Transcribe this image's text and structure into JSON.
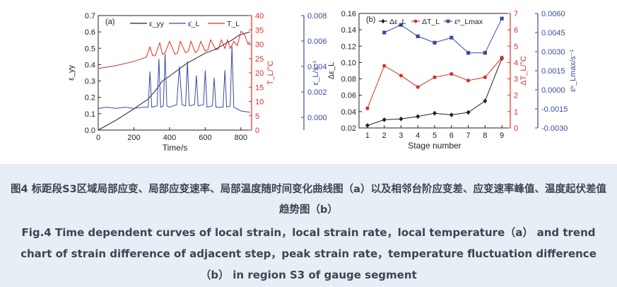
{
  "chart_data": [
    {
      "panel": "(a)",
      "type": "line",
      "xlabel": "Time/s",
      "xlim": [
        0,
        860
      ],
      "xticks": [
        0,
        200,
        400,
        600,
        800
      ],
      "axes": {
        "left": {
          "label": "ε_yy",
          "lim": [
            0.0,
            0.7
          ],
          "ticks": [
            "0.0",
            "0.1",
            "0.2",
            "0.3",
            "0.4",
            "0.5",
            "0.6",
            "0.7"
          ],
          "color": "#222222"
        },
        "right1": {
          "label": "T_L/°C",
          "lim": [
            0,
            40
          ],
          "ticks": [
            "0",
            "5",
            "10",
            "15",
            "20",
            "25",
            "30",
            "35",
            "40"
          ],
          "color": "#d8302a"
        },
        "right2": {
          "label": "ε̇_L/s⁻¹",
          "lim": [
            -0.001,
            0.008
          ],
          "ticks": [
            "0.000",
            "0.002",
            "0.004",
            "0.006",
            "0.008"
          ],
          "color": "#3a4aa0"
        }
      },
      "legend": [
        "ε_yy",
        "ε̇_L",
        "T_L"
      ],
      "series": [
        {
          "name": "ε_yy",
          "axis": "left",
          "color": "#222222",
          "x": [
            0,
            100,
            200,
            280,
            320,
            360,
            400,
            450,
            500,
            550,
            600,
            650,
            700,
            750,
            790,
            820,
            850
          ],
          "y": [
            0.0,
            0.06,
            0.13,
            0.19,
            0.24,
            0.3,
            0.33,
            0.37,
            0.41,
            0.44,
            0.47,
            0.49,
            0.52,
            0.55,
            0.58,
            0.59,
            0.6
          ]
        },
        {
          "name": "ε̇_L",
          "axis": "right2",
          "color": "#3a4aa0",
          "x": [
            0,
            50,
            100,
            150,
            200,
            250,
            280,
            290,
            300,
            330,
            340,
            350,
            365,
            375,
            385,
            400,
            420,
            440,
            455,
            470,
            490,
            500,
            510,
            540,
            550,
            560,
            590,
            600,
            610,
            640,
            650,
            660,
            700,
            710,
            720,
            740,
            750,
            760,
            800,
            850
          ],
          "y": [
            0.0007,
            0.0008,
            0.0007,
            0.0008,
            0.0007,
            0.0008,
            0.0008,
            0.0036,
            0.0008,
            0.0009,
            0.0046,
            0.0008,
            0.0009,
            0.005,
            0.0009,
            0.0008,
            0.0009,
            0.001,
            0.004,
            0.001,
            0.0009,
            0.0044,
            0.0009,
            0.001,
            0.0033,
            0.0009,
            0.001,
            0.0037,
            0.0008,
            0.0009,
            0.0031,
            0.0008,
            0.0008,
            0.0037,
            0.0008,
            0.0009,
            0.0056,
            0.0008,
            0.0005,
            0.0004
          ]
        },
        {
          "name": "T_L",
          "axis": "right1",
          "color": "#d8302a",
          "x": [
            0,
            100,
            200,
            270,
            290,
            305,
            320,
            345,
            360,
            375,
            400,
            430,
            445,
            460,
            490,
            505,
            520,
            545,
            560,
            575,
            600,
            615,
            630,
            660,
            675,
            690,
            710,
            725,
            740,
            760,
            780,
            800,
            820,
            840,
            850
          ],
          "y": [
            21.5,
            22.5,
            24.0,
            25.5,
            29.0,
            26.0,
            26.0,
            30.5,
            26.5,
            27.0,
            31.0,
            26.5,
            27.0,
            31.0,
            27.0,
            27.5,
            31.0,
            27.0,
            28.0,
            31.0,
            27.5,
            28.0,
            31.5,
            28.0,
            28.5,
            31.5,
            28.5,
            31.5,
            28.5,
            31.0,
            29.5,
            34.5,
            33.5,
            30.0,
            31.0
          ]
        }
      ]
    },
    {
      "panel": "(b)",
      "type": "line",
      "xlabel": "Stage number",
      "categories": [
        "1",
        "2",
        "3",
        "4",
        "5",
        "6",
        "7",
        "8",
        "9"
      ],
      "axes": {
        "left": {
          "label": "Δε_L",
          "lim": [
            0.02,
            0.16
          ],
          "ticks": [
            "0.02",
            "0.04",
            "0.06",
            "0.08",
            "0.10",
            "0.12",
            "0.14",
            "0.16"
          ],
          "color": "#222222"
        },
        "right1": {
          "label": "ΔT_L/°C",
          "lim": [
            0,
            7
          ],
          "ticks": [
            "0",
            "1",
            "2",
            "3",
            "4",
            "5",
            "6",
            "7"
          ],
          "color": "#d8302a"
        },
        "right2": {
          "label": "ε̇ⁿ_Lmax/s⁻¹",
          "lim": [
            -0.003,
            0.006
          ],
          "ticks": [
            "-0.0030",
            "-0.0015",
            "0.0000",
            "0.0015",
            "0.0030",
            "0.0045",
            "0.0060"
          ],
          "color": "#3a4aa0"
        }
      },
      "legend": [
        "Δε_L",
        "ΔT_L",
        "ε̇ⁿ_Lmax"
      ],
      "series": [
        {
          "name": "Δε_L",
          "axis": "left",
          "color": "#222222",
          "marker": "diamond",
          "values": [
            0.023,
            0.03,
            0.031,
            0.034,
            0.038,
            0.036,
            0.039,
            0.053,
            0.105
          ]
        },
        {
          "name": "ΔT_L",
          "axis": "right1",
          "color": "#d8302a",
          "marker": "circle",
          "values": [
            1.2,
            3.8,
            3.2,
            2.5,
            3.1,
            3.3,
            2.9,
            3.1,
            4.3
          ]
        },
        {
          "name": "ε̇ⁿ_Lmax",
          "axis": "right2",
          "color": "#3a4aa0",
          "marker": "square",
          "values": [
            null,
            0.0045,
            0.0051,
            0.0042,
            0.0037,
            0.0041,
            0.0029,
            0.0029,
            0.0056
          ]
        }
      ]
    }
  ],
  "caption": {
    "zh": "图4 标距段S3区域局部应变、局部应变速率、局部温度随时间变化曲线图（a）以及相邻台阶应变差、应变速率峰值、温度起伏差值趋势图（b）",
    "en": "Fig.4 Time dependent curves of local strain，local strain rate，local temperature（a） and trend chart of strain difference of adjacent step，peak strain rate，temperature fluctuation difference（b） in region S3 of gauge segment"
  }
}
